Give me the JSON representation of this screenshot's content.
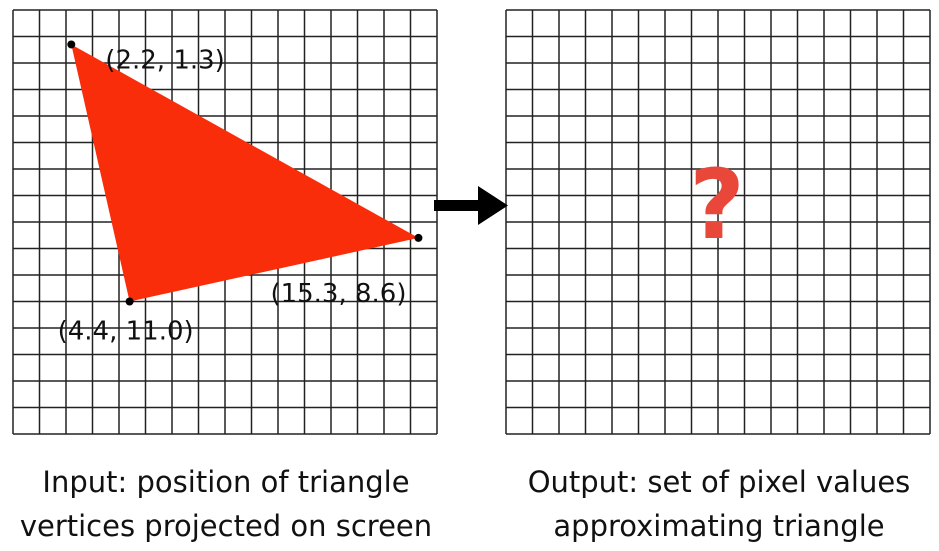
{
  "grid": {
    "columns": 16,
    "rows": 16,
    "line_color": "#222222"
  },
  "input": {
    "triangle_color": "#f92d0a",
    "vertices": [
      {
        "x": 2.2,
        "y": 1.3,
        "label": "(2.2, 1.3)"
      },
      {
        "x": 15.3,
        "y": 8.6,
        "label": "(15.3, 8.6)"
      },
      {
        "x": 4.4,
        "y": 11.0,
        "label": "(4.4, 11.0)"
      }
    ],
    "caption_line1": "Input: position of triangle",
    "caption_line2": "vertices projected on screen"
  },
  "arrow": {
    "color": "#000000",
    "icon": "right-arrow"
  },
  "output": {
    "symbol": "?",
    "symbol_color": "#e8473a",
    "caption_line1": "Output: set of pixel values",
    "caption_line2": "approximating triangle"
  }
}
